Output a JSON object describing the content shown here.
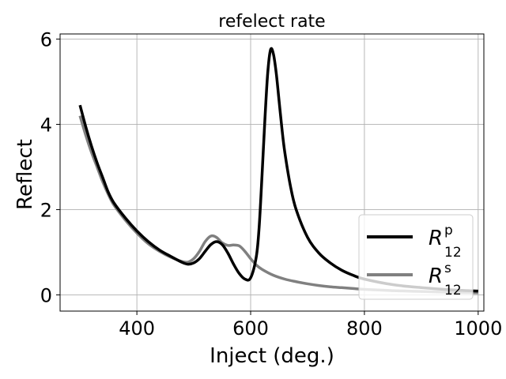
{
  "chart_data": {
    "type": "line",
    "title": "refelect rate",
    "xlabel": "Inject (deg.)",
    "ylabel": "Reflect",
    "xlim": [
      265,
      1010
    ],
    "ylim": [
      -0.38,
      6.12
    ],
    "xticks": [
      400,
      600,
      800,
      1000
    ],
    "yticks": [
      0,
      2,
      4,
      6
    ],
    "grid": true,
    "legend_position": "bottom-right",
    "series": [
      {
        "name": "R",
        "name_sup": "p",
        "name_sub": "12",
        "color": "#000000",
        "x": [
          300,
          310,
          320,
          330,
          340,
          350,
          360,
          380,
          400,
          420,
          440,
          460,
          480,
          490,
          500,
          510,
          520,
          530,
          540,
          550,
          560,
          570,
          580,
          590,
          600,
          610,
          615,
          620,
          625,
          630,
          635,
          640,
          645,
          650,
          655,
          660,
          670,
          680,
          700,
          720,
          740,
          760,
          780,
          800,
          850,
          900,
          950,
          1000
        ],
        "y": [
          4.45,
          3.95,
          3.5,
          3.1,
          2.75,
          2.4,
          2.15,
          1.8,
          1.5,
          1.25,
          1.05,
          0.9,
          0.76,
          0.72,
          0.75,
          0.85,
          1.02,
          1.18,
          1.25,
          1.18,
          0.98,
          0.72,
          0.5,
          0.37,
          0.4,
          0.9,
          1.6,
          2.8,
          4.1,
          5.2,
          5.75,
          5.65,
          5.2,
          4.55,
          3.9,
          3.35,
          2.55,
          2.0,
          1.35,
          0.98,
          0.75,
          0.58,
          0.46,
          0.37,
          0.24,
          0.17,
          0.12,
          0.09
        ]
      },
      {
        "name": "R",
        "name_sup": "s",
        "name_sub": "12",
        "color": "#808080",
        "x": [
          300,
          310,
          320,
          330,
          340,
          350,
          360,
          380,
          400,
          420,
          440,
          460,
          480,
          490,
          500,
          510,
          520,
          530,
          540,
          550,
          560,
          570,
          580,
          590,
          600,
          610,
          620,
          640,
          660,
          680,
          700,
          720,
          740,
          760,
          780,
          800,
          850,
          900,
          950,
          1000
        ],
        "y": [
          4.2,
          3.75,
          3.35,
          3.0,
          2.65,
          2.35,
          2.1,
          1.75,
          1.45,
          1.2,
          1.02,
          0.88,
          0.78,
          0.77,
          0.85,
          1.02,
          1.25,
          1.38,
          1.35,
          1.22,
          1.16,
          1.17,
          1.15,
          1.02,
          0.85,
          0.7,
          0.6,
          0.46,
          0.37,
          0.31,
          0.26,
          0.22,
          0.19,
          0.17,
          0.15,
          0.13,
          0.1,
          0.08,
          0.06,
          0.05
        ]
      }
    ]
  }
}
